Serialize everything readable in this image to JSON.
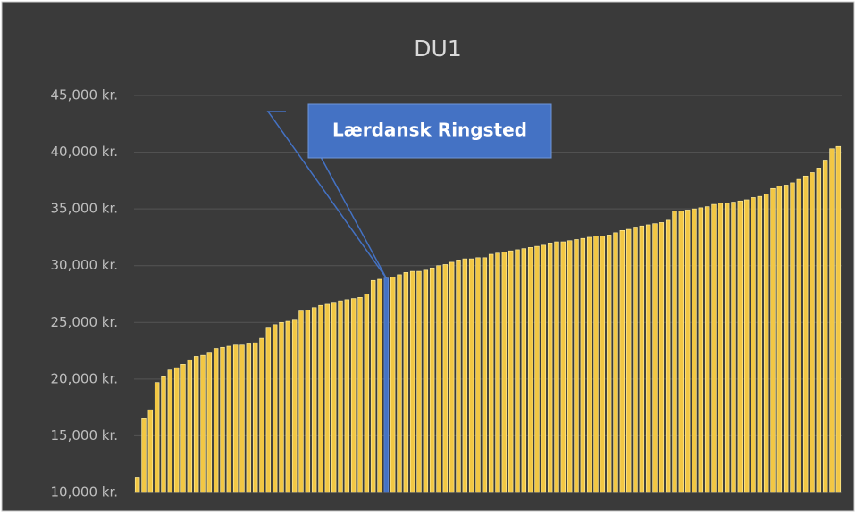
{
  "chart_data": {
    "type": "bar",
    "title": "DU1",
    "categories": [
      null,
      null,
      null,
      null,
      null,
      null,
      null,
      null,
      null,
      null,
      null,
      null,
      null,
      null,
      null,
      null,
      null,
      null,
      null,
      null,
      null,
      null,
      null,
      null,
      null,
      null,
      null,
      null,
      null,
      null,
      null,
      null,
      null,
      null,
      null,
      null,
      null,
      null,
      null,
      null,
      null,
      null,
      null,
      null,
      null,
      null,
      null,
      null,
      null,
      null,
      null,
      null,
      null,
      null,
      null,
      null,
      null,
      null,
      null,
      null,
      null,
      null,
      null,
      null,
      null,
      null,
      null,
      null,
      null,
      null,
      null,
      null,
      null,
      null,
      null,
      null,
      null,
      null,
      null,
      null,
      null,
      null,
      null,
      null,
      null,
      null,
      null,
      null,
      null,
      null,
      null,
      null,
      null,
      null,
      null,
      null,
      null,
      null,
      null,
      null,
      null,
      null,
      null,
      null,
      null,
      null,
      null,
      null
    ],
    "values": [
      11300,
      16500,
      17300,
      19700,
      20200,
      20800,
      21000,
      21300,
      21700,
      22000,
      22100,
      22300,
      22700,
      22800,
      22900,
      23000,
      23000,
      23100,
      23200,
      23600,
      24500,
      24800,
      25000,
      25100,
      25200,
      26000,
      26100,
      26300,
      26500,
      26600,
      26700,
      26900,
      27000,
      27100,
      27200,
      27500,
      28700,
      28800,
      28900,
      29000,
      29200,
      29400,
      29500,
      29500,
      29600,
      29800,
      30000,
      30100,
      30300,
      30500,
      30600,
      30600,
      30700,
      30700,
      31000,
      31100,
      31200,
      31300,
      31400,
      31500,
      31600,
      31700,
      31800,
      32000,
      32100,
      32100,
      32200,
      32300,
      32400,
      32500,
      32600,
      32600,
      32700,
      32900,
      33100,
      33200,
      33400,
      33500,
      33600,
      33700,
      33800,
      34000,
      34800,
      34800,
      34900,
      35000,
      35100,
      35200,
      35400,
      35500,
      35500,
      35600,
      35700,
      35800,
      36000,
      36100,
      36300,
      36800,
      37000,
      37100,
      37300,
      37600,
      37900,
      38200,
      38600,
      39300,
      40300,
      40500
    ],
    "color": "#f2c744",
    "highlight": {
      "text": "Lærdansk Ringsted",
      "color": "#4472c4",
      "bar": 38
    },
    "ylim": [
      10000,
      45000
    ],
    "yticks": [
      {
        "value": 10000,
        "label": "10,000 kr."
      },
      {
        "value": 15000,
        "label": "15,000 kr."
      },
      {
        "value": 20000,
        "label": "20,000 kr."
      },
      {
        "value": 25000,
        "label": "25,000 kr."
      },
      {
        "value": 30000,
        "label": "30,000 kr."
      },
      {
        "value": 35000,
        "label": "35,000 kr."
      },
      {
        "value": 40000,
        "label": "40,000 kr."
      },
      {
        "value": 45000,
        "label": "45,000 kr."
      }
    ],
    "grid": true
  }
}
